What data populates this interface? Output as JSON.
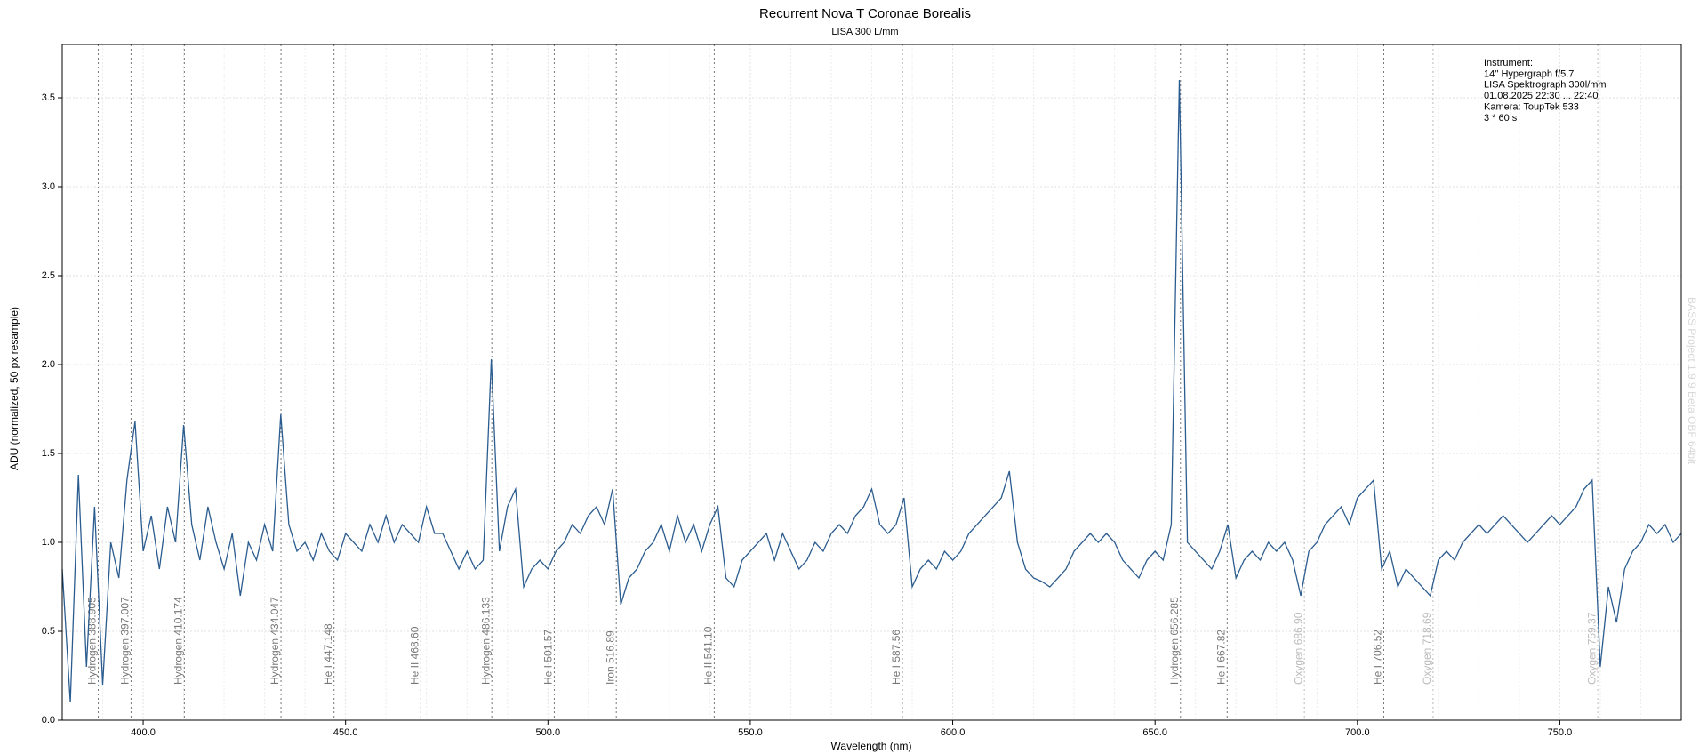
{
  "chart_data": {
    "type": "line",
    "title": "Recurrent Nova T Coronae Borealis",
    "subtitle": "LISA 300 L/mm",
    "xlabel": "Wavelength (nm)",
    "ylabel": "ADU (normalized, 50 px resample)",
    "info": [
      "Instrument:",
      "14'' Hypergraph f/5.7",
      "LISA Spektrograph 300l/mm",
      "01.08.2025  22:30 ... 22:40",
      "Kamera: ToupTek 533",
      "3 * 60 s"
    ],
    "watermark": "BASS Project 1.9.9 Beta OBF 64bit",
    "color": "#2b5c8f",
    "xlim": [
      380,
      780
    ],
    "ylim": [
      0,
      3.8
    ],
    "xticks": [
      {
        "value": 400,
        "label": "400.0"
      },
      {
        "value": 450,
        "label": "450.0"
      },
      {
        "value": 500,
        "label": "500.0"
      },
      {
        "value": 550,
        "label": "550.0"
      },
      {
        "value": 600,
        "label": "600.0"
      },
      {
        "value": 650,
        "label": "650.0"
      },
      {
        "value": 700,
        "label": "700.0"
      },
      {
        "value": 750,
        "label": "750.0"
      }
    ],
    "xminorticks": [
      390,
      410,
      420,
      430,
      440,
      460,
      470,
      480,
      490,
      510,
      520,
      530,
      540,
      560,
      570,
      580,
      590,
      610,
      620,
      630,
      640,
      660,
      670,
      680,
      690,
      710,
      720,
      730,
      740,
      760,
      770
    ],
    "yticks": [
      {
        "value": 0,
        "label": "0.0"
      },
      {
        "value": 0.5,
        "label": "0.5"
      },
      {
        "value": 1,
        "label": "1.0"
      },
      {
        "value": 1.5,
        "label": "1.5"
      },
      {
        "value": 2,
        "label": "2.0"
      },
      {
        "value": 2.5,
        "label": "2.5"
      },
      {
        "value": 3,
        "label": "3.0"
      },
      {
        "value": 3.5,
        "label": "3.5"
      }
    ],
    "grid": true,
    "lines": [
      {
        "label": "Hydrogen 388.905",
        "value": 388.905,
        "color": "#777777"
      },
      {
        "label": "Hydrogen 397.007",
        "value": 397.007,
        "color": "#777777"
      },
      {
        "label": "Hydrogen 410.174",
        "value": 410.174,
        "color": "#777777"
      },
      {
        "label": "Hydrogen 434.047",
        "value": 434.047,
        "color": "#777777"
      },
      {
        "label": "He I 447.148",
        "value": 447.148,
        "color": "#777777"
      },
      {
        "label": "He II 468.60",
        "value": 468.6,
        "color": "#777777"
      },
      {
        "label": "Hydrogen 486.133",
        "value": 486.133,
        "color": "#777777"
      },
      {
        "label": "He I 501.57",
        "value": 501.57,
        "color": "#777777"
      },
      {
        "label": "Iron 516.89",
        "value": 516.89,
        "color": "#777777"
      },
      {
        "label": "He II 541.10",
        "value": 541.1,
        "color": "#777777"
      },
      {
        "label": "He I 587.56",
        "value": 587.56,
        "color": "#777777"
      },
      {
        "label": "Hydrogen 656.285",
        "value": 656.285,
        "color": "#777777"
      },
      {
        "label": "He I 667.82",
        "value": 667.82,
        "color": "#777777"
      },
      {
        "label": "Oxygen 686.90",
        "value": 686.9,
        "color": "#bbbbbb"
      },
      {
        "label": "He I 706.52",
        "value": 706.52,
        "color": "#777777"
      },
      {
        "label": "Oxygen 718.69",
        "value": 718.69,
        "color": "#bbbbbb"
      },
      {
        "label": "Oxygen 759.37",
        "value": 759.37,
        "color": "#bbbbbb"
      }
    ],
    "x": [
      380,
      382,
      384,
      386,
      388,
      390,
      392,
      394,
      396,
      398,
      400,
      402,
      404,
      406,
      408,
      410,
      412,
      414,
      416,
      418,
      420,
      422,
      424,
      426,
      428,
      430,
      432,
      434,
      436,
      438,
      440,
      442,
      444,
      446,
      448,
      450,
      452,
      454,
      456,
      458,
      460,
      462,
      464,
      466,
      468,
      470,
      472,
      474,
      476,
      478,
      480,
      482,
      484,
      486,
      488,
      490,
      492,
      494,
      496,
      498,
      500,
      502,
      504,
      506,
      508,
      510,
      512,
      514,
      516,
      518,
      520,
      522,
      524,
      526,
      528,
      530,
      532,
      534,
      536,
      538,
      540,
      542,
      544,
      546,
      548,
      550,
      552,
      554,
      556,
      558,
      560,
      562,
      564,
      566,
      568,
      570,
      572,
      574,
      576,
      578,
      580,
      582,
      584,
      586,
      588,
      590,
      592,
      594,
      596,
      598,
      600,
      602,
      604,
      606,
      608,
      610,
      612,
      614,
      616,
      618,
      620,
      622,
      624,
      626,
      628,
      630,
      632,
      634,
      636,
      638,
      640,
      642,
      644,
      646,
      648,
      650,
      652,
      654,
      656,
      658,
      660,
      662,
      664,
      666,
      668,
      670,
      672,
      674,
      676,
      678,
      680,
      682,
      684,
      686,
      688,
      690,
      692,
      694,
      696,
      698,
      700,
      702,
      704,
      706,
      708,
      710,
      712,
      714,
      716,
      718,
      720,
      722,
      724,
      726,
      728,
      730,
      732,
      734,
      736,
      738,
      740,
      742,
      744,
      746,
      748,
      750,
      752,
      754,
      756,
      758,
      760,
      762,
      764,
      766,
      768,
      770,
      772,
      774,
      776,
      778,
      780
    ],
    "values": [
      0.85,
      0.1,
      1.38,
      0.3,
      1.2,
      0.2,
      1.0,
      0.8,
      1.35,
      1.68,
      0.95,
      1.15,
      0.85,
      1.2,
      1.0,
      1.66,
      1.1,
      0.9,
      1.2,
      1.0,
      0.85,
      1.05,
      0.7,
      1.0,
      0.9,
      1.1,
      0.95,
      1.72,
      1.1,
      0.95,
      1.0,
      0.9,
      1.05,
      0.95,
      0.9,
      1.05,
      1.0,
      0.95,
      1.1,
      1.0,
      1.15,
      1.0,
      1.1,
      1.05,
      1.0,
      1.2,
      1.05,
      1.05,
      0.95,
      0.85,
      0.95,
      0.85,
      0.9,
      2.03,
      0.95,
      1.2,
      1.3,
      0.75,
      0.85,
      0.9,
      0.85,
      0.95,
      1.0,
      1.1,
      1.05,
      1.15,
      1.2,
      1.1,
      1.3,
      0.65,
      0.8,
      0.85,
      0.95,
      1.0,
      1.1,
      0.95,
      1.15,
      1.0,
      1.1,
      0.95,
      1.1,
      1.2,
      0.8,
      0.75,
      0.9,
      0.95,
      1.0,
      1.05,
      0.9,
      1.05,
      0.95,
      0.85,
      0.9,
      1.0,
      0.95,
      1.05,
      1.1,
      1.05,
      1.15,
      1.2,
      1.3,
      1.1,
      1.05,
      1.1,
      1.25,
      0.75,
      0.85,
      0.9,
      0.85,
      0.95,
      0.9,
      0.95,
      1.05,
      1.1,
      1.15,
      1.2,
      1.25,
      1.4,
      1.0,
      0.85,
      0.8,
      0.78,
      0.75,
      0.8,
      0.85,
      0.95,
      1.0,
      1.05,
      1.0,
      1.05,
      1.0,
      0.9,
      0.85,
      0.8,
      0.9,
      0.95,
      0.9,
      1.1,
      3.6,
      1.0,
      0.95,
      0.9,
      0.85,
      0.95,
      1.1,
      0.8,
      0.9,
      0.95,
      0.9,
      1.0,
      0.95,
      1.0,
      0.9,
      0.7,
      0.95,
      1.0,
      1.1,
      1.15,
      1.2,
      1.1,
      1.25,
      1.3,
      1.35,
      0.85,
      0.95,
      0.75,
      0.85,
      0.8,
      0.75,
      0.7,
      0.9,
      0.95,
      0.9,
      1.0,
      1.05,
      1.1,
      1.05,
      1.1,
      1.15,
      1.1,
      1.05,
      1.0,
      1.05,
      1.1,
      1.15,
      1.1,
      1.15,
      1.2,
      1.3,
      1.35,
      0.3,
      0.75,
      0.55,
      0.85,
      0.95,
      1.0,
      1.1,
      1.05,
      1.1,
      1.0,
      1.05
    ]
  }
}
